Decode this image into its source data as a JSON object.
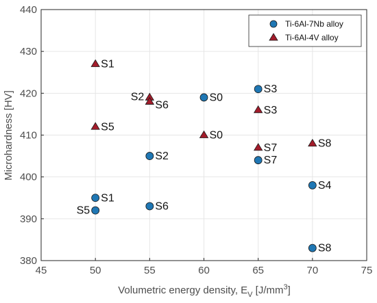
{
  "chart_data": {
    "type": "scatter",
    "xlabel_main": "Volumetric energy density, E",
    "xlabel_sub": "V",
    "xlabel_unit_pre": " [J/mm",
    "xlabel_unit_sup": "3",
    "xlabel_unit_post": "]",
    "ylabel": "Microhardness [HV]",
    "xlim": [
      45,
      75
    ],
    "ylim": [
      380,
      440
    ],
    "xticks": [
      45,
      50,
      55,
      60,
      65,
      70,
      75
    ],
    "yticks": [
      380,
      390,
      400,
      410,
      420,
      430,
      440
    ],
    "grid": true,
    "legend_position": "top-right",
    "series": [
      {
        "name": "Ti-6Al-7Nb alloy",
        "marker": "circle",
        "color": "#1f77b4",
        "points": [
          {
            "x": 50,
            "y": 395,
            "label": "S1"
          },
          {
            "x": 50,
            "y": 392,
            "label": "S5"
          },
          {
            "x": 55,
            "y": 405,
            "label": "S2"
          },
          {
            "x": 55,
            "y": 393,
            "label": "S6"
          },
          {
            "x": 60,
            "y": 419,
            "label": "S0"
          },
          {
            "x": 65,
            "y": 421,
            "label": "S3"
          },
          {
            "x": 65,
            "y": 404,
            "label": "S7"
          },
          {
            "x": 70,
            "y": 398,
            "label": "S4"
          },
          {
            "x": 70,
            "y": 383,
            "label": "S8"
          }
        ]
      },
      {
        "name": "Ti-6Al-4V alloy",
        "marker": "triangle",
        "color": "#a31c2b",
        "points": [
          {
            "x": 50,
            "y": 427,
            "label": "S1"
          },
          {
            "x": 50,
            "y": 412,
            "label": "S5"
          },
          {
            "x": 55,
            "y": 419,
            "label": "S2"
          },
          {
            "x": 55,
            "y": 418,
            "label": "S6"
          },
          {
            "x": 60,
            "y": 410,
            "label": "S0"
          },
          {
            "x": 65,
            "y": 416,
            "label": "S3"
          },
          {
            "x": 65,
            "y": 407,
            "label": "S7"
          },
          {
            "x": 70,
            "y": 408,
            "label": "S8"
          }
        ]
      }
    ]
  }
}
